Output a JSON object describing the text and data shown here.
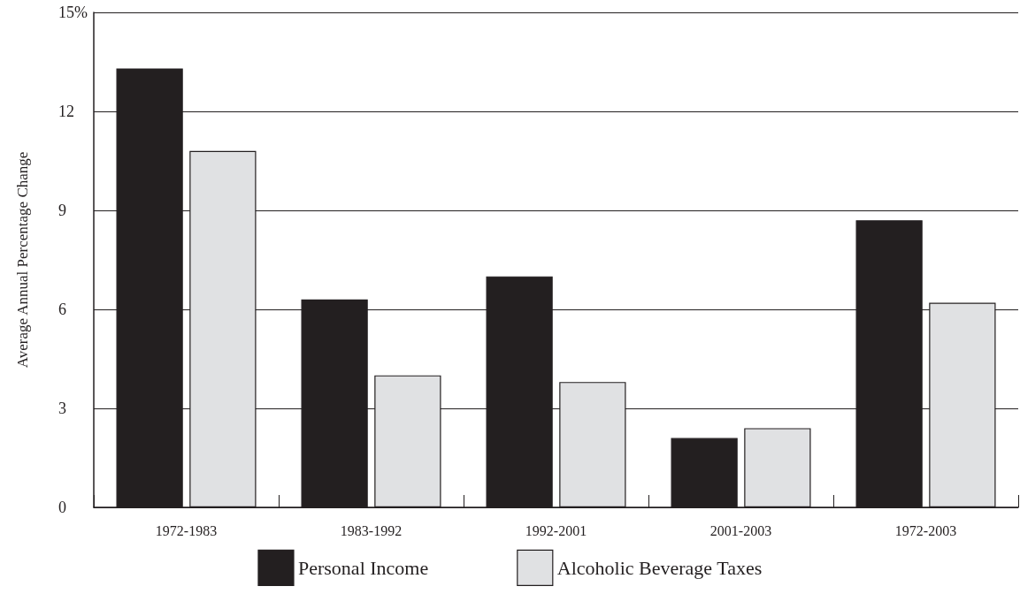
{
  "chart_data": {
    "type": "bar",
    "ylabel": "Average Annual Percentage Change",
    "categories": [
      "1972-1983",
      "1983-1992",
      "1992-2001",
      "2001-2003",
      "1972-2003"
    ],
    "series": [
      {
        "name": "Personal Income",
        "color": "#231f20",
        "values": [
          13.3,
          6.3,
          7.0,
          2.1,
          8.7
        ]
      },
      {
        "name": "Alcoholic Beverage Taxes",
        "color": "#e0e1e3",
        "values": [
          10.8,
          4.0,
          3.8,
          2.4,
          6.2
        ]
      }
    ],
    "ylim": [
      0,
      15
    ],
    "yticks": [
      0,
      3,
      6,
      9,
      12,
      {
        "value": 15,
        "label": "15%"
      }
    ],
    "grid": "y",
    "legend": "bottom"
  }
}
